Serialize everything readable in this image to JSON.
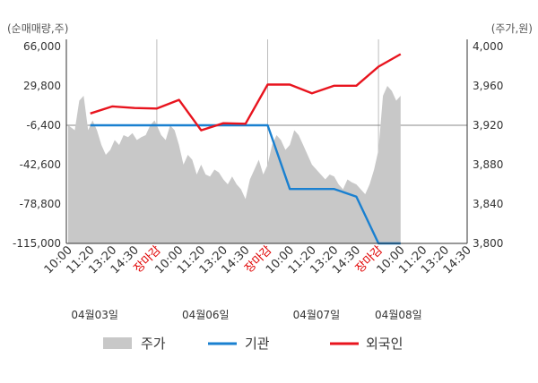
{
  "chart_data": {
    "type": "line",
    "left_axis_label": "(순매매량,주)",
    "right_axis_label": "(주가,원)",
    "left_ticks": [
      "66,000",
      "29,800",
      "-6,400",
      "-42,600",
      "-78,800",
      "-115,000"
    ],
    "left_range": [
      -115000,
      66000
    ],
    "right_ticks": [
      "4,000",
      "3,960",
      "3,920",
      "3,880",
      "3,840",
      "3,800"
    ],
    "right_range": [
      3800,
      4000
    ],
    "x_tick_labels": [
      "10:00",
      "11:20",
      "13:20",
      "14:30",
      "장마감",
      "10:00",
      "11:20",
      "13:20",
      "14:30",
      "장마감",
      "10:00",
      "11:20",
      "13:20",
      "14:30",
      "장마감",
      "10:00",
      "11:20",
      "13:20",
      "14:30"
    ],
    "close_label": "장마감",
    "dates": [
      "04월03일",
      "04월06일",
      "04월07일",
      "04월08일"
    ],
    "reference_line": -6400,
    "legend": [
      {
        "label": "주가",
        "color": "#c8c8c8",
        "kind": "area"
      },
      {
        "label": "기관",
        "color": "#1a80d0",
        "kind": "line"
      },
      {
        "label": "외국인",
        "color": "#e8141e",
        "kind": "line"
      }
    ],
    "series": [
      {
        "name": "기관",
        "color": "#1a80d0",
        "points": [
          [
            1,
            -6400
          ],
          [
            4,
            -6400
          ],
          [
            8,
            -6400
          ],
          [
            9,
            -6400
          ],
          [
            10,
            -65000
          ],
          [
            12,
            -65000
          ],
          [
            13,
            -72000
          ],
          [
            14,
            -115000
          ],
          [
            15,
            -115000
          ]
        ]
      },
      {
        "name": "외국인",
        "color": "#e8141e",
        "points": [
          [
            1,
            4500
          ],
          [
            2,
            11000
          ],
          [
            3,
            9500
          ],
          [
            4,
            9000
          ],
          [
            5,
            17000
          ],
          [
            6,
            -11000
          ],
          [
            7,
            -4500
          ],
          [
            8,
            -5000
          ],
          [
            9,
            31000
          ],
          [
            10,
            31000
          ],
          [
            11,
            23000
          ],
          [
            12,
            30000
          ],
          [
            13,
            30000
          ],
          [
            14,
            47500
          ],
          [
            15,
            59000
          ]
        ]
      }
    ],
    "price": {
      "points": [
        [
          0,
          3920
        ],
        [
          0.3,
          3915
        ],
        [
          0.5,
          3945
        ],
        [
          0.7,
          3950
        ],
        [
          0.9,
          3915
        ],
        [
          1.1,
          3925
        ],
        [
          1.3,
          3915
        ],
        [
          1.5,
          3900
        ],
        [
          1.7,
          3890
        ],
        [
          1.9,
          3895
        ],
        [
          2.1,
          3905
        ],
        [
          2.3,
          3900
        ],
        [
          2.5,
          3910
        ],
        [
          2.7,
          3908
        ],
        [
          2.9,
          3912
        ],
        [
          3.1,
          3905
        ],
        [
          3.3,
          3908
        ],
        [
          3.5,
          3910
        ],
        [
          3.7,
          3920
        ],
        [
          3.9,
          3925
        ],
        [
          4.0,
          3920
        ],
        [
          4.2,
          3910
        ],
        [
          4.4,
          3905
        ],
        [
          4.6,
          3920
        ],
        [
          4.8,
          3915
        ],
        [
          5.0,
          3900
        ],
        [
          5.2,
          3880
        ],
        [
          5.4,
          3890
        ],
        [
          5.6,
          3885
        ],
        [
          5.8,
          3870
        ],
        [
          6.0,
          3880
        ],
        [
          6.2,
          3870
        ],
        [
          6.4,
          3868
        ],
        [
          6.6,
          3875
        ],
        [
          6.8,
          3872
        ],
        [
          7.0,
          3865
        ],
        [
          7.2,
          3860
        ],
        [
          7.4,
          3868
        ],
        [
          7.6,
          3860
        ],
        [
          7.8,
          3855
        ],
        [
          8.0,
          3845
        ],
        [
          8.2,
          3865
        ],
        [
          8.4,
          3875
        ],
        [
          8.6,
          3885
        ],
        [
          8.8,
          3870
        ],
        [
          9.0,
          3880
        ],
        [
          9.2,
          3900
        ],
        [
          9.4,
          3910
        ],
        [
          9.6,
          3905
        ],
        [
          9.8,
          3895
        ],
        [
          10.0,
          3900
        ],
        [
          10.2,
          3915
        ],
        [
          10.4,
          3910
        ],
        [
          10.6,
          3900
        ],
        [
          10.8,
          3890
        ],
        [
          11.0,
          3880
        ],
        [
          11.2,
          3875
        ],
        [
          11.4,
          3870
        ],
        [
          11.6,
          3865
        ],
        [
          11.8,
          3870
        ],
        [
          12.0,
          3868
        ],
        [
          12.2,
          3860
        ],
        [
          12.4,
          3855
        ],
        [
          12.6,
          3865
        ],
        [
          12.8,
          3862
        ],
        [
          13.0,
          3860
        ],
        [
          13.2,
          3855
        ],
        [
          13.4,
          3850
        ],
        [
          13.6,
          3860
        ],
        [
          13.8,
          3875
        ],
        [
          14.0,
          3895
        ],
        [
          14.2,
          3950
        ],
        [
          14.4,
          3960
        ],
        [
          14.6,
          3955
        ],
        [
          14.8,
          3945
        ],
        [
          15.0,
          3950
        ]
      ]
    }
  }
}
